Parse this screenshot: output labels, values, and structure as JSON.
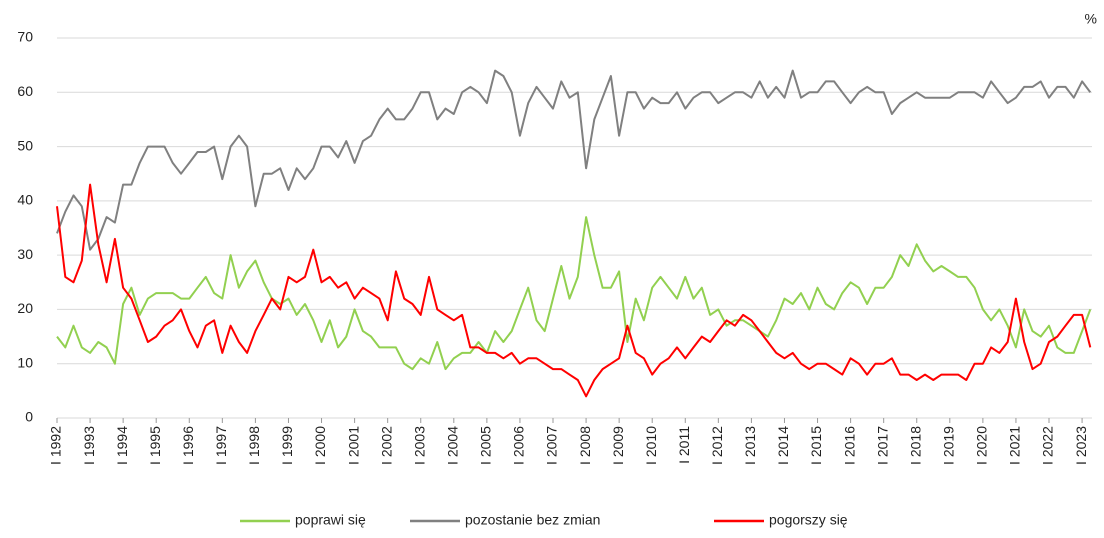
{
  "chart_data": {
    "type": "line",
    "unit_label": "%",
    "x": [
      1992,
      1992.25,
      1992.5,
      1992.75,
      1993,
      1993.25,
      1993.5,
      1993.75,
      1994,
      1994.25,
      1994.5,
      1994.75,
      1995,
      1995.25,
      1995.5,
      1995.75,
      1996,
      1996.25,
      1996.5,
      1996.75,
      1997,
      1997.25,
      1997.5,
      1997.75,
      1998,
      1998.25,
      1998.5,
      1998.75,
      1999,
      1999.25,
      1999.5,
      1999.75,
      2000,
      2000.25,
      2000.5,
      2000.75,
      2001,
      2001.25,
      2001.5,
      2001.75,
      2002,
      2002.25,
      2002.5,
      2002.75,
      2003,
      2003.25,
      2003.5,
      2003.75,
      2004,
      2004.25,
      2004.5,
      2004.75,
      2005,
      2005.25,
      2005.5,
      2005.75,
      2006,
      2006.25,
      2006.5,
      2006.75,
      2007,
      2007.25,
      2007.5,
      2007.75,
      2008,
      2008.25,
      2008.5,
      2008.75,
      2009,
      2009.25,
      2009.5,
      2009.75,
      2010,
      2010.25,
      2010.5,
      2010.75,
      2011,
      2011.25,
      2011.5,
      2011.75,
      2012,
      2012.25,
      2012.5,
      2012.75,
      2013,
      2013.25,
      2013.5,
      2013.75,
      2014,
      2014.25,
      2014.5,
      2014.75,
      2015,
      2015.25,
      2015.5,
      2015.75,
      2016,
      2016.25,
      2016.5,
      2016.75,
      2017,
      2017.25,
      2017.5,
      2017.75,
      2018,
      2018.25,
      2018.5,
      2018.75,
      2019,
      2019.25,
      2019.5,
      2019.75,
      2020,
      2020.25,
      2020.5,
      2020.75,
      2021,
      2021.25,
      2021.5,
      2021.75,
      2022,
      2022.25,
      2022.5,
      2022.75,
      2023,
      2023.25
    ],
    "series": [
      {
        "name": "poprawi się",
        "color": "#92d050",
        "values": [
          15,
          13,
          17,
          13,
          12,
          14,
          13,
          10,
          21,
          24,
          19,
          22,
          23,
          23,
          23,
          22,
          22,
          24,
          26,
          23,
          22,
          30,
          24,
          27,
          29,
          25,
          22,
          21,
          22,
          19,
          21,
          18,
          14,
          18,
          13,
          15,
          20,
          16,
          15,
          13,
          13,
          13,
          10,
          9,
          11,
          10,
          14,
          9,
          11,
          12,
          12,
          14,
          12,
          16,
          14,
          16,
          20,
          24,
          18,
          16,
          22,
          28,
          22,
          26,
          37,
          30,
          24,
          24,
          27,
          14,
          22,
          18,
          24,
          26,
          24,
          22,
          26,
          22,
          24,
          19,
          20,
          17,
          18,
          18,
          17,
          16,
          15,
          18,
          22,
          21,
          23,
          20,
          24,
          21,
          20,
          23,
          25,
          24,
          21,
          24,
          24,
          26,
          30,
          28,
          32,
          29,
          27,
          28,
          27,
          26,
          26,
          24,
          20,
          18,
          20,
          17,
          13,
          20,
          16,
          15,
          17,
          13,
          12,
          12,
          16,
          20
        ]
      },
      {
        "name": "pozostanie bez zmian",
        "color": "#808080",
        "values": [
          34,
          38,
          41,
          39,
          31,
          33,
          37,
          36,
          43,
          43,
          47,
          50,
          50,
          50,
          47,
          45,
          47,
          49,
          49,
          50,
          44,
          50,
          52,
          50,
          39,
          45,
          45,
          46,
          42,
          46,
          44,
          46,
          50,
          50,
          48,
          51,
          47,
          51,
          52,
          55,
          57,
          55,
          55,
          57,
          60,
          60,
          55,
          57,
          56,
          60,
          61,
          60,
          58,
          64,
          63,
          60,
          52,
          58,
          61,
          59,
          57,
          62,
          59,
          60,
          46,
          55,
          59,
          63,
          52,
          60,
          60,
          57,
          59,
          58,
          58,
          60,
          57,
          59,
          60,
          60,
          58,
          59,
          60,
          60,
          59,
          62,
          59,
          61,
          59,
          64,
          59,
          60,
          60,
          62,
          62,
          60,
          58,
          60,
          61,
          60,
          60,
          56,
          58,
          59,
          60,
          59,
          59,
          59,
          59,
          60,
          60,
          60,
          59,
          62,
          60,
          58,
          59,
          61,
          61,
          62,
          59,
          61,
          61,
          59,
          62,
          60
        ]
      },
      {
        "name": "pogorszy się",
        "color": "#ff0000",
        "values": [
          39,
          26,
          25,
          29,
          43,
          32,
          25,
          33,
          24,
          22,
          18,
          14,
          15,
          17,
          18,
          20,
          16,
          13,
          17,
          18,
          12,
          17,
          14,
          12,
          16,
          19,
          22,
          20,
          26,
          25,
          26,
          31,
          25,
          26,
          24,
          25,
          22,
          24,
          23,
          22,
          18,
          27,
          22,
          21,
          19,
          26,
          20,
          19,
          18,
          19,
          13,
          13,
          12,
          12,
          11,
          12,
          10,
          11,
          11,
          10,
          9,
          9,
          8,
          7,
          4,
          7,
          9,
          10,
          11,
          17,
          12,
          11,
          8,
          10,
          11,
          13,
          11,
          13,
          15,
          14,
          16,
          18,
          17,
          19,
          18,
          16,
          14,
          12,
          11,
          12,
          10,
          9,
          10,
          10,
          9,
          8,
          11,
          10,
          8,
          10,
          10,
          11,
          8,
          8,
          7,
          8,
          7,
          8,
          8,
          8,
          7,
          10,
          10,
          13,
          12,
          14,
          22,
          14,
          9,
          10,
          14,
          15,
          17,
          19,
          19,
          13
        ]
      }
    ],
    "xlim": [
      1992,
      2023.3
    ],
    "xticks": [
      {
        "value": 1992,
        "label": "I 1992"
      },
      {
        "value": 1993,
        "label": "I 1993"
      },
      {
        "value": 1994,
        "label": "I 1994"
      },
      {
        "value": 1995,
        "label": "I 1995"
      },
      {
        "value": 1996,
        "label": "I 1996"
      },
      {
        "value": 1997,
        "label": "I 1997"
      },
      {
        "value": 1998,
        "label": "I 1998"
      },
      {
        "value": 1999,
        "label": "I 1999"
      },
      {
        "value": 2000,
        "label": "I 2000"
      },
      {
        "value": 2001,
        "label": "I 2001"
      },
      {
        "value": 2002,
        "label": "I 2002"
      },
      {
        "value": 2003,
        "label": "I 2003"
      },
      {
        "value": 2004,
        "label": "I 2004"
      },
      {
        "value": 2005,
        "label": "I 2005"
      },
      {
        "value": 2006,
        "label": "I 2006"
      },
      {
        "value": 2007,
        "label": "I 2007"
      },
      {
        "value": 2008,
        "label": "I 2008"
      },
      {
        "value": 2009,
        "label": "I 2009"
      },
      {
        "value": 2010,
        "label": "I 2010"
      },
      {
        "value": 2011,
        "label": "I 2011"
      },
      {
        "value": 2012,
        "label": "I 2012"
      },
      {
        "value": 2013,
        "label": "I 2013"
      },
      {
        "value": 2014,
        "label": "I 2014"
      },
      {
        "value": 2015,
        "label": "I 2015"
      },
      {
        "value": 2016,
        "label": "I 2016"
      },
      {
        "value": 2017,
        "label": "I 2017"
      },
      {
        "value": 2018,
        "label": "I 2018"
      },
      {
        "value": 2019,
        "label": "I 2019"
      },
      {
        "value": 2020,
        "label": "I 2020"
      },
      {
        "value": 2021,
        "label": "I 2021"
      },
      {
        "value": 2022,
        "label": "I 2022"
      },
      {
        "value": 2023,
        "label": "I 2023"
      }
    ],
    "ylim": [
      0,
      70
    ],
    "yticks": [
      0,
      10,
      20,
      30,
      40,
      50,
      60,
      70
    ],
    "grid": true
  }
}
